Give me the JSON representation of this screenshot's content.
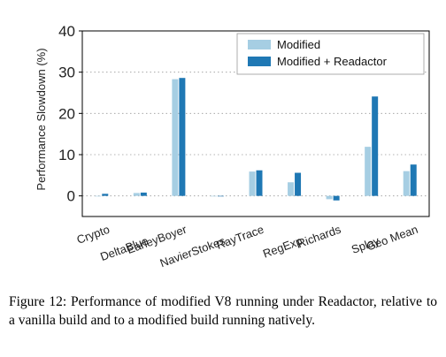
{
  "chart_data": {
    "type": "bar",
    "ylabel": "Performance Slowdown (%)",
    "ylim": [
      -5,
      40
    ],
    "yticks": [
      0,
      10,
      20,
      30,
      40
    ],
    "categories": [
      "Crypto",
      "DeltaBlue",
      "EarleyBoyer",
      "NavierStokes",
      "RayTrace",
      "RegExp",
      "Richards",
      "Splay",
      "Geo Mean"
    ],
    "series": [
      {
        "name": "Modified",
        "color": "#a6cee3",
        "values": [
          0.0,
          0.7,
          28.3,
          0.0,
          5.9,
          3.3,
          -0.8,
          11.9,
          6.0
        ]
      },
      {
        "name": "Modified + Readactor",
        "color": "#1f78b4",
        "values": [
          0.5,
          0.8,
          28.6,
          0.0,
          6.2,
          5.6,
          -1.1,
          24.1,
          7.6
        ]
      }
    ],
    "grid": "horizontal-dotted",
    "legend_position": "top-right"
  },
  "caption": "Figure 12: Performance of modified V8 running under Readactor, relative to a vanilla build and to a modified build running natively."
}
